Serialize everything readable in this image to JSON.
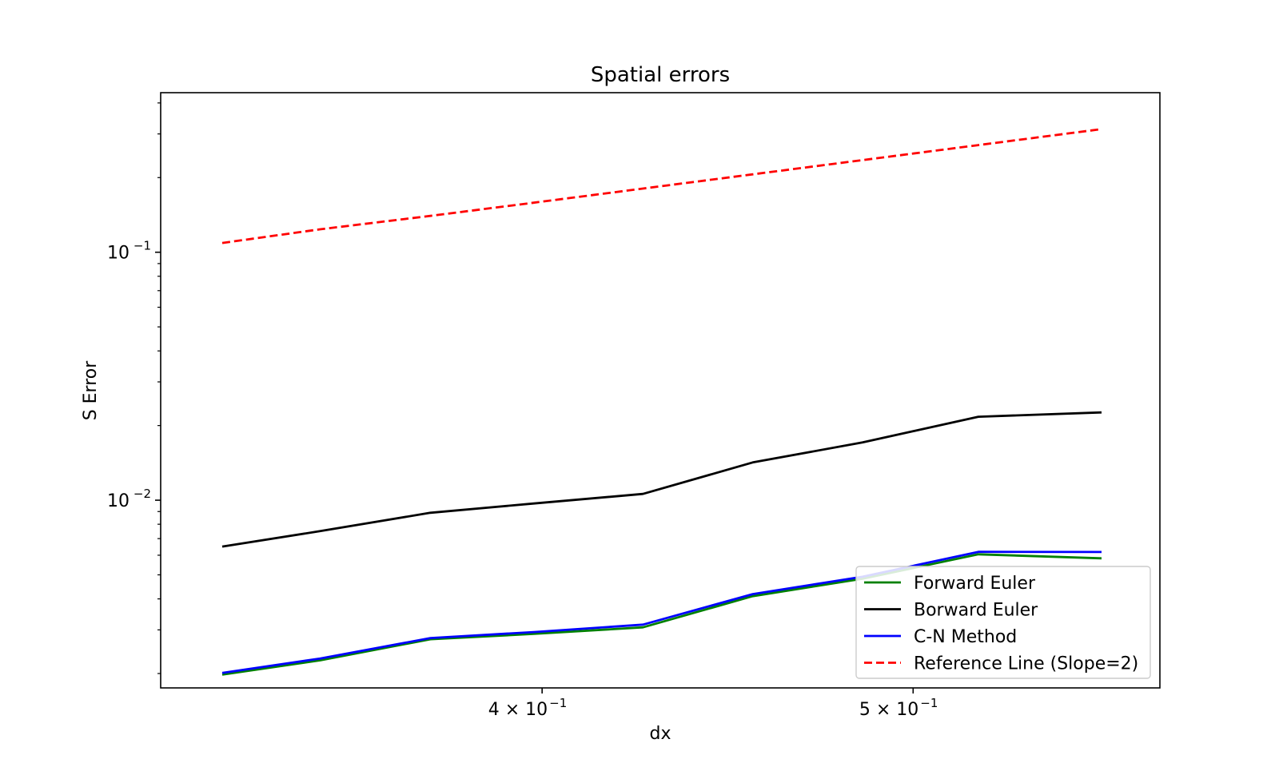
{
  "chart_data": {
    "type": "line",
    "title": "Spatial errors",
    "xlabel": "dx",
    "ylabel": "S Error",
    "xscale": "log",
    "yscale": "log",
    "xlim": [
      0.318,
      0.58
    ],
    "ylim": [
      0.00175,
      0.44
    ],
    "x_ticks": [
      {
        "value": 0.4,
        "label_base": "4 × 10",
        "label_exp": "−1"
      },
      {
        "value": 0.5,
        "label_base": "5 × 10",
        "label_exp": "−1"
      }
    ],
    "y_ticks": [
      {
        "value": 0.1,
        "label_base": "10",
        "label_exp": "−1"
      },
      {
        "value": 0.01,
        "label_base": "10",
        "label_exp": "−2"
      }
    ],
    "grid": false,
    "legend_position": "lower-right",
    "x": [
      0.33,
      0.35,
      0.374,
      0.398,
      0.425,
      0.454,
      0.485,
      0.52,
      0.56
    ],
    "series": [
      {
        "name": "Forward Euler",
        "color": "#008000",
        "dashed": false,
        "values": [
          0.00198,
          0.00226,
          0.00275,
          0.00289,
          0.00307,
          0.0041,
          0.00482,
          0.00605,
          0.00583
        ]
      },
      {
        "name": "Borward Euler",
        "color": "#000000",
        "dashed": false,
        "values": [
          0.0065,
          0.0075,
          0.0089,
          0.0097,
          0.0106,
          0.0142,
          0.0171,
          0.0217,
          0.0226
        ]
      },
      {
        "name": "C-N Method",
        "color": "#0000ff",
        "dashed": false,
        "values": [
          0.00201,
          0.0023,
          0.00278,
          0.00294,
          0.00315,
          0.00418,
          0.00491,
          0.00619,
          0.00618
        ]
      },
      {
        "name": "Reference Line (Slope=2)",
        "color": "#ff0000",
        "dashed": true,
        "values": [
          0.109,
          0.1237,
          0.1402,
          0.1584,
          0.1806,
          0.2062,
          0.2352,
          0.2704,
          0.3136
        ]
      }
    ]
  }
}
